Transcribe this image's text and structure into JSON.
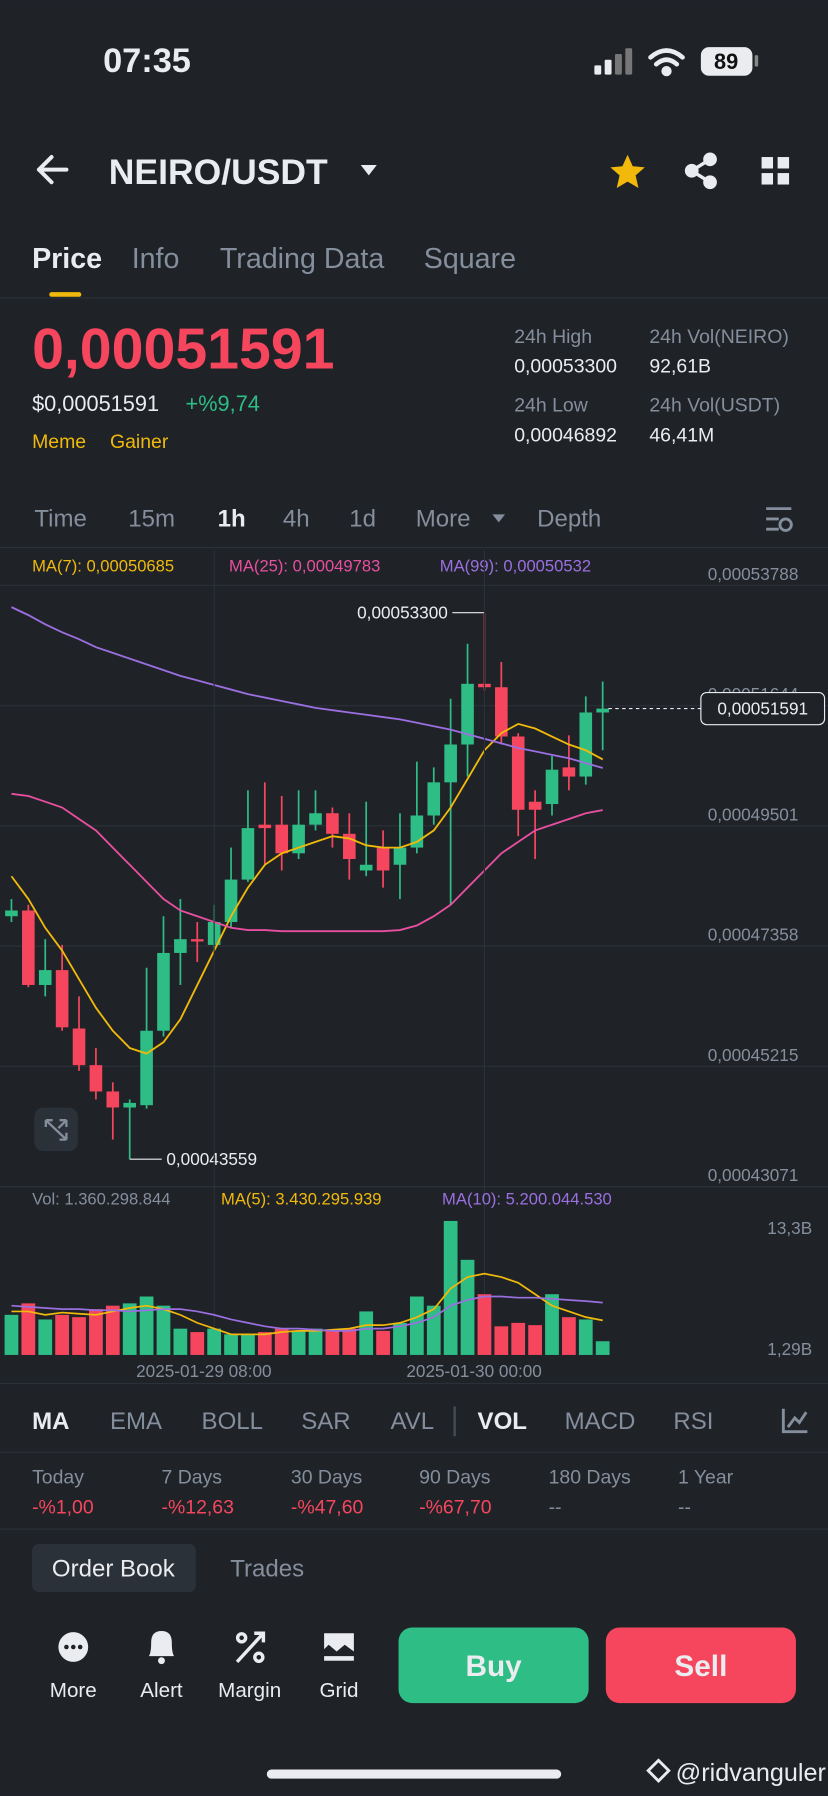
{
  "status_bar": {
    "time": "07:35",
    "battery": "89"
  },
  "header": {
    "title": "NEIRO/USDT"
  },
  "tabs": [
    "Price",
    "Info",
    "Trading Data",
    "Square"
  ],
  "ticker": {
    "price": "0,00051591",
    "price_usd": "$0,00051591",
    "change": "+%9,74",
    "tags": [
      "Meme",
      "Gainer"
    ],
    "stats": [
      {
        "label": "24h High",
        "value": "0,00053300"
      },
      {
        "label": "24h Vol(NEIRO)",
        "value": "92,61B"
      },
      {
        "label": "24h Low",
        "value": "0,00046892"
      },
      {
        "label": "24h Vol(USDT)",
        "value": "46,41M"
      }
    ]
  },
  "intervals": [
    "Time",
    "15m",
    "1h",
    "4h",
    "1d",
    "More",
    "Depth"
  ],
  "chart_data": [
    {
      "type": "candlestick",
      "up_color": "#2ebd85",
      "down_color": "#f6465d",
      "grid": true,
      "open": [
        0.0004789,
        0.00047992,
        0.00046665,
        0.0004693,
        0.00045889,
        0.00045236,
        0.00044767,
        0.00044481,
        0.00044522,
        0.00045849,
        0.00047236,
        0.00047481,
        0.00047379,
        0.00047787,
        0.00048543,
        0.00049522,
        0.00049522,
        0.00049012,
        0.00049522,
        0.00049726,
        0.00049359,
        0.00048706,
        0.00049114,
        0.00048808,
        0.00049114,
        0.00049686,
        0.00050277,
        0.00050951,
        0.00052033,
        0.00051972,
        0.00051094,
        0.00049931,
        0.0004989,
        0.00050543,
        0.0005038,
        0.00051522
      ],
      "high": [
        0.00048196,
        0.00048094,
        0.00047481,
        0.00047379,
        0.00046461,
        0.00045542,
        0.0004493,
        0.00044624,
        0.00046971,
        0.0004789,
        0.00048196,
        0.00047787,
        0.00048094,
        0.00049114,
        0.00050135,
        0.00050277,
        0.00050033,
        0.00050135,
        0.00050135,
        0.00049828,
        0.00049726,
        0.00049931,
        0.0004942,
        0.00049726,
        0.00050645,
        0.00050543,
        0.00051767,
        0.00052747,
        0.000533,
        0.00052421,
        0.00051155,
        0.00050135,
        0.00050747,
        0.00051114,
        0.00051808,
        0.00052074
      ],
      "low": [
        0.00047787,
        0.00046624,
        0.00046461,
        0.00045849,
        0.00045134,
        0.00044624,
        0.0004391,
        0.00043559,
        0.00044461,
        0.00045746,
        0.00046665,
        0.00047073,
        0.00047277,
        0.00047685,
        0.00048502,
        0.00048808,
        0.00048706,
        0.0004891,
        0.0004942,
        0.00049114,
        0.00048543,
        0.00048604,
        0.000484,
        0.00048196,
        0.00049012,
        0.00049522,
        0.00048094,
        0.0005038,
        0.0005191,
        0.00050951,
        0.00049318,
        0.0004891,
        0.00049686,
        0.00050135,
        0.00050237,
        0.00050849
      ],
      "close": [
        0.00047992,
        0.00046665,
        0.0004693,
        0.0004591,
        0.00045236,
        0.00044767,
        0.00044481,
        0.00044563,
        0.00045849,
        0.00047236,
        0.00047481,
        0.0004744,
        0.00047787,
        0.00048543,
        0.00049461,
        0.00049461,
        0.00049012,
        0.00049522,
        0.00049726,
        0.00049359,
        0.0004891,
        0.00048808,
        0.00048706,
        0.00049114,
        0.00049686,
        0.00050277,
        0.00050951,
        0.00052033,
        0.00051972,
        0.00051094,
        0.00049788,
        0.00049788,
        0.00050502,
        0.0005038,
        0.00051522,
        0.00051591
      ],
      "series": [
        {
          "name": "MA(7): 0,00050685",
          "color": "#f0b90b",
          "values": [
            0.00048604,
            0.00048196,
            0.00047685,
            0.00047277,
            0.00046767,
            0.00046257,
            0.00045849,
            0.00045542,
            0.0004544,
            0.00045645,
            0.00046053,
            0.00046665,
            0.00047277,
            0.0004789,
            0.000484,
            0.00048808,
            0.00049012,
            0.00049114,
            0.00049216,
            0.00049318,
            0.00049277,
            0.00049155,
            0.00049114,
            0.00049114,
            0.00049216,
            0.0004942,
            0.00049828,
            0.00050339,
            0.00050849,
            0.00051155,
            0.00051318,
            0.00051237,
            0.00051094,
            0.00050951,
            0.00050849,
            0.00050685
          ]
        },
        {
          "name": "MA(25): 0,00049783",
          "color": "#e84fa0",
          "values": [
            0.00050073,
            0.00050033,
            0.00049931,
            0.00049828,
            0.00049624,
            0.0004942,
            0.00049114,
            0.00048808,
            0.00048502,
            0.00048196,
            0.00047992,
            0.0004789,
            0.00047787,
            0.00047685,
            0.00047644,
            0.00047644,
            0.00047624,
            0.00047624,
            0.00047624,
            0.00047624,
            0.00047624,
            0.00047624,
            0.00047624,
            0.00047644,
            0.00047726,
            0.0004789,
            0.00048094,
            0.000484,
            0.00048706,
            0.00049012,
            0.00049216,
            0.0004942,
            0.00049522,
            0.00049624,
            0.00049726,
            0.00049783
          ]
        },
        {
          "name": "MA(99): 0,00050532",
          "color": "#9b6fe0",
          "values": [
            0.000534,
            0.00053257,
            0.00053094,
            0.00052951,
            0.00052829,
            0.00052686,
            0.00052584,
            0.00052482,
            0.0005238,
            0.00052278,
            0.00052176,
            0.00052094,
            0.00052012,
            0.00051931,
            0.00051849,
            0.00051788,
            0.00051727,
            0.00051665,
            0.00051604,
            0.00051563,
            0.00051522,
            0.00051482,
            0.00051441,
            0.000514,
            0.00051339,
            0.00051278,
            0.00051216,
            0.00051135,
            0.00051053,
            0.00050971,
            0.0005089,
            0.00050829,
            0.00050767,
            0.00050706,
            0.0005062,
            0.00050532
          ]
        }
      ],
      "ylim": [
        0.00043071,
        0.00053788
      ],
      "yticks": [
        {
          "value": 0.00053788,
          "label": "0,00053788"
        },
        {
          "value": 0.00051644,
          "label": "0,00051644"
        },
        {
          "value": 0.00049501,
          "label": "0,00049501"
        },
        {
          "value": 0.00047358,
          "label": "0,00047358"
        },
        {
          "value": 0.00045215,
          "label": "0,00045215"
        },
        {
          "value": 0.00043071,
          "label": "0,00043071"
        }
      ],
      "last_price": {
        "label": "0,00051591",
        "value": 0.00051591
      },
      "annotations": [
        {
          "label": "0,00053300",
          "value": 0.000533
        },
        {
          "label": "0,00043559",
          "value": 0.00043559
        }
      ]
    },
    {
      "type": "bar",
      "label": "Vol: 1.360.298.844",
      "categories": [
        null,
        null,
        null,
        null,
        null,
        null,
        null,
        null,
        null,
        null,
        null,
        null,
        "2025-01-29 08:00",
        null,
        null,
        null,
        null,
        null,
        null,
        null,
        null,
        null,
        null,
        null,
        null,
        null,
        null,
        null,
        "2025-01-30 00:00",
        null,
        null,
        null,
        null,
        null,
        null,
        null
      ],
      "values": [
        3980000000,
        5120000000,
        3520000000,
        3980000000,
        3750000000,
        4550000000,
        4890000000,
        5120000000,
        5800000000,
        4890000000,
        2610000000,
        2270000000,
        2610000000,
        2050000000,
        2050000000,
        2270000000,
        2610000000,
        2390000000,
        2610000000,
        2390000000,
        2610000000,
        4320000000,
        2390000000,
        3180000000,
        5800000000,
        4890000000,
        13300000000,
        9440000000,
        6030000000,
        2840000000,
        3180000000,
        2960000000,
        6030000000,
        3750000000,
        3520000000,
        1360298844
      ],
      "series": [
        {
          "name": "MA(5): 3.430.295.939",
          "color": "#f0b90b",
          "values": [
            4320000000,
            4320000000,
            3980000000,
            4210000000,
            4090000000,
            3980000000,
            4320000000,
            4660000000,
            4890000000,
            4550000000,
            3980000000,
            3180000000,
            2610000000,
            2050000000,
            2050000000,
            2050000000,
            2270000000,
            2390000000,
            2390000000,
            2500000000,
            2610000000,
            2960000000,
            2960000000,
            3180000000,
            3750000000,
            4550000000,
            6590000000,
            7730000000,
            8070000000,
            7730000000,
            7160000000,
            6030000000,
            4890000000,
            4320000000,
            3750000000,
            3430295939
          ]
        },
        {
          "name": "MA(10): 5.200.044.530",
          "color": "#9b6fe0",
          "values": [
            4890000000,
            4770000000,
            4660000000,
            4550000000,
            4550000000,
            4430000000,
            4430000000,
            4320000000,
            4430000000,
            4550000000,
            4550000000,
            4320000000,
            3980000000,
            3520000000,
            3180000000,
            2840000000,
            2610000000,
            2610000000,
            2500000000,
            2390000000,
            2390000000,
            2610000000,
            2610000000,
            2840000000,
            3180000000,
            3750000000,
            4890000000,
            5460000000,
            5800000000,
            5800000000,
            5680000000,
            5680000000,
            5570000000,
            5460000000,
            5340000000,
            5200044530
          ]
        }
      ],
      "ylim": [
        0,
        13300000000
      ],
      "yticks": [
        {
          "value": 13300000000,
          "label": "13,3B"
        },
        {
          "value": 1290000000,
          "label": "1,29B"
        }
      ]
    }
  ],
  "indicators": [
    "MA",
    "EMA",
    "BOLL",
    "SAR",
    "AVL",
    "VOL",
    "MACD",
    "RSI"
  ],
  "performance": [
    {
      "label": "Today",
      "value": "-%1,00"
    },
    {
      "label": "7 Days",
      "value": "-%12,63"
    },
    {
      "label": "30 Days",
      "value": "-%47,60"
    },
    {
      "label": "90 Days",
      "value": "-%67,70"
    },
    {
      "label": "180 Days",
      "value": "--"
    },
    {
      "label": "1 Year",
      "value": "--"
    }
  ],
  "book_tabs": [
    "Order Book",
    "Trades"
  ],
  "actions": [
    "More",
    "Alert",
    "Margin",
    "Grid"
  ],
  "buttons": [
    "Buy",
    "Sell"
  ],
  "watermark": "@ridvanguler"
}
